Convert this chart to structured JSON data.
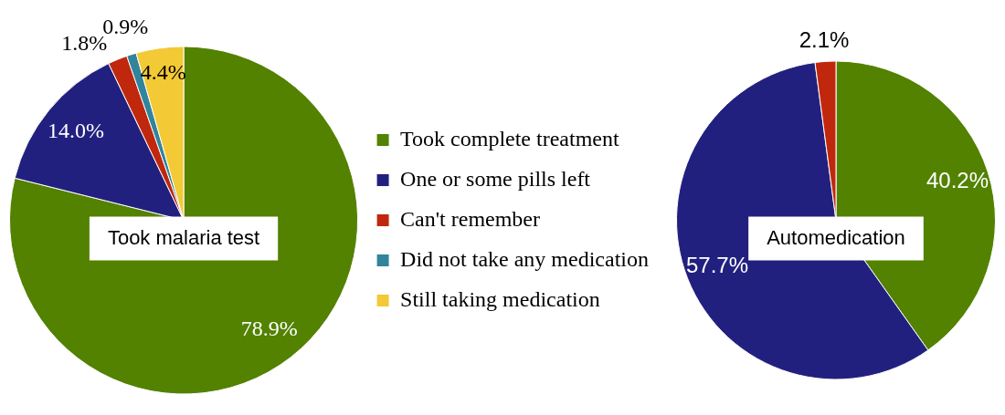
{
  "chart_data": [
    {
      "type": "pie",
      "title": "Took malaria test",
      "categories": [
        "Took complete treatment",
        "One or some pills left",
        "Can't remember",
        "Did not take any medication",
        "Still taking medication"
      ],
      "values": [
        78.9,
        14.0,
        1.8,
        0.9,
        4.4
      ],
      "colors": [
        "#538100",
        "#22207f",
        "#c0280e",
        "#31849b",
        "#f3c935"
      ],
      "value_labels": [
        "78.9%",
        "14.0%",
        "1.8%",
        "0.9%",
        "4.4%"
      ],
      "legend": "right"
    },
    {
      "type": "pie",
      "title": "Automedication",
      "categories": [
        null,
        null,
        null
      ],
      "values": [
        40.2,
        57.7,
        2.1
      ],
      "colors": [
        "#538100",
        "#22207f",
        "#c0280e"
      ],
      "value_labels": [
        "40.2%",
        "57.7%",
        "2.1%"
      ]
    }
  ]
}
